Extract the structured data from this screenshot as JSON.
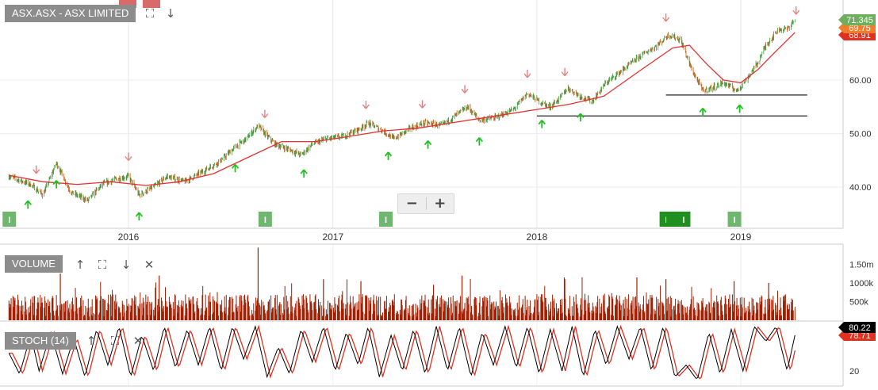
{
  "main_panel": {
    "title": "ASX.ASX - ASX LIMITED",
    "price_labels": [
      "71.345",
      "69.75",
      "68.91"
    ],
    "price_label_colors": [
      "#6fae5d",
      "#f07d2b",
      "#e03020"
    ]
  },
  "volume_panel": {
    "title": "VOLUME"
  },
  "stoch_panel": {
    "title": "STOCH (14)",
    "value_labels": [
      "80.22",
      "78.71"
    ],
    "value_label_colors": [
      "#000000",
      "#e03020"
    ]
  },
  "zoom": {
    "minus": "−",
    "plus": "+"
  },
  "icons": [
    "expand-icon",
    "arrow-down-icon",
    "arrow-up-icon",
    "close-icon",
    "zoom-out-icon",
    "zoom-in-icon"
  ],
  "colors": {
    "ma_line": "#e63030",
    "up_candle": "#3a9a3a",
    "down_candle": "#c05a12",
    "volume": "#a31e00",
    "stoch_k": "#000000",
    "stoch_d": "#e03020",
    "up_signal": "#22c022",
    "down_signal": "#e58080",
    "marker": "#6fb66f"
  },
  "chart_data": [
    {
      "type": "line",
      "panel": "price",
      "x_ticks": [
        "2016",
        "2017",
        "2018",
        "2019"
      ],
      "y_ticks": [
        40,
        50,
        60
      ],
      "ylim": [
        33,
        71.5
      ],
      "series": [
        {
          "values_by_date": [
            [
              "2015-06-01",
              42.0
            ],
            [
              "2015-07-10",
              40.5
            ],
            [
              "2015-08-01",
              38.5
            ],
            [
              "2015-08-25",
              44.5
            ],
            [
              "2015-09-20",
              39.0
            ],
            [
              "2015-10-20",
              37.5
            ],
            [
              "2015-11-15",
              40.5
            ],
            [
              "2015-12-10",
              41.5
            ],
            [
              "2016-01-01",
              42.0
            ],
            [
              "2016-01-20",
              38.5
            ],
            [
              "2016-02-15",
              40.0
            ],
            [
              "2016-03-10",
              42.0
            ],
            [
              "2016-04-10",
              41.0
            ],
            [
              "2016-05-15",
              43.0
            ],
            [
              "2016-06-15",
              45.0
            ],
            [
              "2016-07-10",
              47.5
            ],
            [
              "2016-07-30",
              49.0
            ],
            [
              "2016-08-20",
              51.5
            ],
            [
              "2016-09-05",
              49.5
            ],
            [
              "2016-09-20",
              48.0
            ],
            [
              "2016-10-15",
              47.0
            ],
            [
              "2016-11-05",
              46.0
            ],
            [
              "2016-11-25",
              48.0
            ],
            [
              "2016-12-20",
              49.0
            ],
            [
              "2017-01-20",
              49.5
            ],
            [
              "2017-02-20",
              51.0
            ],
            [
              "2017-03-05",
              52.0
            ],
            [
              "2017-04-01",
              50.5
            ],
            [
              "2017-04-20",
              49.0
            ],
            [
              "2017-05-20",
              51.0
            ],
            [
              "2017-06-15",
              52.0
            ],
            [
              "2017-07-15",
              51.5
            ],
            [
              "2017-08-10",
              53.5
            ],
            [
              "2017-08-30",
              55.0
            ],
            [
              "2017-09-20",
              52.5
            ],
            [
              "2017-10-20",
              53.0
            ],
            [
              "2017-11-20",
              54.5
            ],
            [
              "2017-12-15",
              57.5
            ],
            [
              "2018-01-05",
              56.0
            ],
            [
              "2018-01-25",
              55.0
            ],
            [
              "2018-02-10",
              56.5
            ],
            [
              "2018-02-25",
              58.5
            ],
            [
              "2018-03-20",
              57.0
            ],
            [
              "2018-04-10",
              56.0
            ],
            [
              "2018-05-05",
              59.5
            ],
            [
              "2018-06-05",
              62.0
            ],
            [
              "2018-07-05",
              64.5
            ],
            [
              "2018-08-05",
              66.5
            ],
            [
              "2018-08-25",
              68.5
            ],
            [
              "2018-09-15",
              67.5
            ],
            [
              "2018-10-05",
              62.0
            ],
            [
              "2018-10-25",
              58.0
            ],
            [
              "2018-11-10",
              58.5
            ],
            [
              "2018-12-01",
              59.5
            ],
            [
              "2018-12-25",
              58.0
            ],
            [
              "2019-01-10",
              60.0
            ],
            [
              "2019-01-30",
              63.0
            ],
            [
              "2019-02-15",
              66.5
            ],
            [
              "2019-03-10",
              69.5
            ],
            [
              "2019-03-25",
              69.5
            ],
            [
              "2019-04-08",
              71.345
            ]
          ],
          "kind": "candles-approx"
        },
        {
          "name": "",
          "values_by_date": [
            [
              "2015-06-01",
              42.2
            ],
            [
              "2015-08-01",
              41.0
            ],
            [
              "2015-10-01",
              40.5
            ],
            [
              "2015-12-01",
              41.0
            ],
            [
              "2016-02-01",
              40.3
            ],
            [
              "2016-04-01",
              41.0
            ],
            [
              "2016-06-01",
              42.5
            ],
            [
              "2016-08-01",
              45.5
            ],
            [
              "2016-10-01",
              48.5
            ],
            [
              "2016-12-01",
              48.5
            ],
            [
              "2017-02-01",
              49.5
            ],
            [
              "2017-04-01",
              50.5
            ],
            [
              "2017-06-01",
              51.0
            ],
            [
              "2017-08-01",
              52.0
            ],
            [
              "2017-10-01",
              53.0
            ],
            [
              "2018-01-01",
              54.5
            ],
            [
              "2018-03-01",
              55.5
            ],
            [
              "2018-05-01",
              57.0
            ],
            [
              "2018-07-01",
              61.5
            ],
            [
              "2018-09-01",
              66.0
            ],
            [
              "2018-10-01",
              66.5
            ],
            [
              "2018-11-01",
              63.0
            ],
            [
              "2018-12-01",
              60.0
            ],
            [
              "2019-01-01",
              59.5
            ],
            [
              "2019-02-01",
              62.0
            ],
            [
              "2019-03-01",
              65.0
            ],
            [
              "2019-04-08",
              68.91
            ]
          ]
        }
      ],
      "horizontal_lines": [
        {
          "value": 57.2,
          "from": "2018-08-20",
          "to": "2019-04-30"
        },
        {
          "value": 53.3,
          "from": "2018-01-01",
          "to": "2019-04-30"
        }
      ],
      "signals_up": [
        "2015-07-05",
        "2015-08-25",
        "2016-01-20",
        "2016-07-10",
        "2016-11-10",
        "2017-04-10",
        "2017-06-20",
        "2017-09-20",
        "2018-01-10",
        "2018-03-20",
        "2018-10-25",
        "2018-12-30"
      ],
      "signals_down": [
        "2015-07-20",
        "2016-01-01",
        "2016-09-01",
        "2017-03-01",
        "2017-06-10",
        "2017-08-25",
        "2017-12-15",
        "2018-02-20",
        "2018-08-20",
        "2019-04-10"
      ],
      "markers": [
        "2015-06-01",
        "2016-09-01",
        "2017-04-05",
        "2018-08-20",
        "2018-09-01",
        "2018-09-10",
        "2018-09-20",
        "2018-12-20"
      ]
    },
    {
      "type": "bar",
      "panel": "volume",
      "y_ticks": [
        "500k",
        "1000k",
        "1.50m"
      ],
      "ylim": [
        0,
        1.9
      ],
      "peaks": [
        [
          "2015-09-01",
          1.25
        ],
        [
          "2016-02-25",
          1.2
        ],
        [
          "2016-08-20",
          1.95
        ],
        [
          "2016-12-15",
          1.1
        ],
        [
          "2017-02-20",
          1.05
        ],
        [
          "2017-06-30",
          0.95
        ],
        [
          "2017-08-20",
          1.2
        ],
        [
          "2018-02-20",
          1.1
        ],
        [
          "2018-06-29",
          1.15
        ],
        [
          "2018-08-20",
          1.1
        ],
        [
          "2018-12-20",
          1.05
        ],
        [
          "2019-02-20",
          1.0
        ]
      ],
      "typical_range": [
        0.1,
        0.7
      ]
    },
    {
      "type": "line",
      "panel": "stochastic",
      "y_ticks": [
        20
      ],
      "ylim": [
        0,
        100
      ],
      "series": [
        {
          "name": "",
          "values_by_date": [
            [
              "2015-06-01",
              50
            ],
            [
              "2015-06-20",
              15
            ],
            [
              "2015-07-10",
              80
            ],
            [
              "2015-07-25",
              20
            ],
            [
              "2015-08-15",
              85
            ],
            [
              "2015-09-05",
              15
            ],
            [
              "2015-09-25",
              75
            ],
            [
              "2015-10-15",
              10
            ],
            [
              "2015-11-05",
              90
            ],
            [
              "2015-11-25",
              30
            ],
            [
              "2015-12-15",
              95
            ],
            [
              "2016-01-05",
              10
            ],
            [
              "2016-01-25",
              80
            ],
            [
              "2016-02-15",
              20
            ],
            [
              "2016-03-05",
              95
            ],
            [
              "2016-03-25",
              25
            ],
            [
              "2016-04-15",
              90
            ],
            [
              "2016-05-05",
              30
            ],
            [
              "2016-05-25",
              95
            ],
            [
              "2016-06-15",
              20
            ],
            [
              "2016-07-05",
              95
            ],
            [
              "2016-07-25",
              40
            ],
            [
              "2016-08-15",
              95
            ],
            [
              "2016-09-05",
              10
            ],
            [
              "2016-09-25",
              60
            ],
            [
              "2016-10-15",
              15
            ],
            [
              "2016-11-05",
              90
            ],
            [
              "2016-11-25",
              35
            ],
            [
              "2016-12-15",
              95
            ],
            [
              "2017-01-05",
              20
            ],
            [
              "2017-01-25",
              85
            ],
            [
              "2017-02-15",
              30
            ],
            [
              "2017-03-05",
              95
            ],
            [
              "2017-03-25",
              10
            ],
            [
              "2017-04-15",
              80
            ],
            [
              "2017-05-05",
              20
            ],
            [
              "2017-05-25",
              90
            ],
            [
              "2017-06-15",
              15
            ],
            [
              "2017-07-05",
              95
            ],
            [
              "2017-07-25",
              20
            ],
            [
              "2017-08-15",
              95
            ],
            [
              "2017-09-05",
              10
            ],
            [
              "2017-09-25",
              85
            ],
            [
              "2017-10-15",
              30
            ],
            [
              "2017-11-05",
              95
            ],
            [
              "2017-11-25",
              25
            ],
            [
              "2017-12-15",
              95
            ],
            [
              "2018-01-05",
              15
            ],
            [
              "2018-01-25",
              90
            ],
            [
              "2018-02-15",
              20
            ],
            [
              "2018-03-05",
              95
            ],
            [
              "2018-03-25",
              10
            ],
            [
              "2018-04-15",
              90
            ],
            [
              "2018-05-05",
              30
            ],
            [
              "2018-05-25",
              95
            ],
            [
              "2018-06-15",
              40
            ],
            [
              "2018-07-05",
              95
            ],
            [
              "2018-07-25",
              20
            ],
            [
              "2018-08-15",
              95
            ],
            [
              "2018-09-05",
              10
            ],
            [
              "2018-09-25",
              30
            ],
            [
              "2018-10-15",
              5
            ],
            [
              "2018-11-05",
              85
            ],
            [
              "2018-11-25",
              15
            ],
            [
              "2018-12-15",
              90
            ],
            [
              "2019-01-05",
              20
            ],
            [
              "2019-01-25",
              95
            ],
            [
              "2019-02-15",
              70
            ],
            [
              "2019-03-05",
              95
            ],
            [
              "2019-03-25",
              20
            ],
            [
              "2019-04-08",
              80.22
            ]
          ]
        },
        {
          "name": "",
          "lag_days": 6,
          "last_value": 78.71
        }
      ]
    }
  ]
}
